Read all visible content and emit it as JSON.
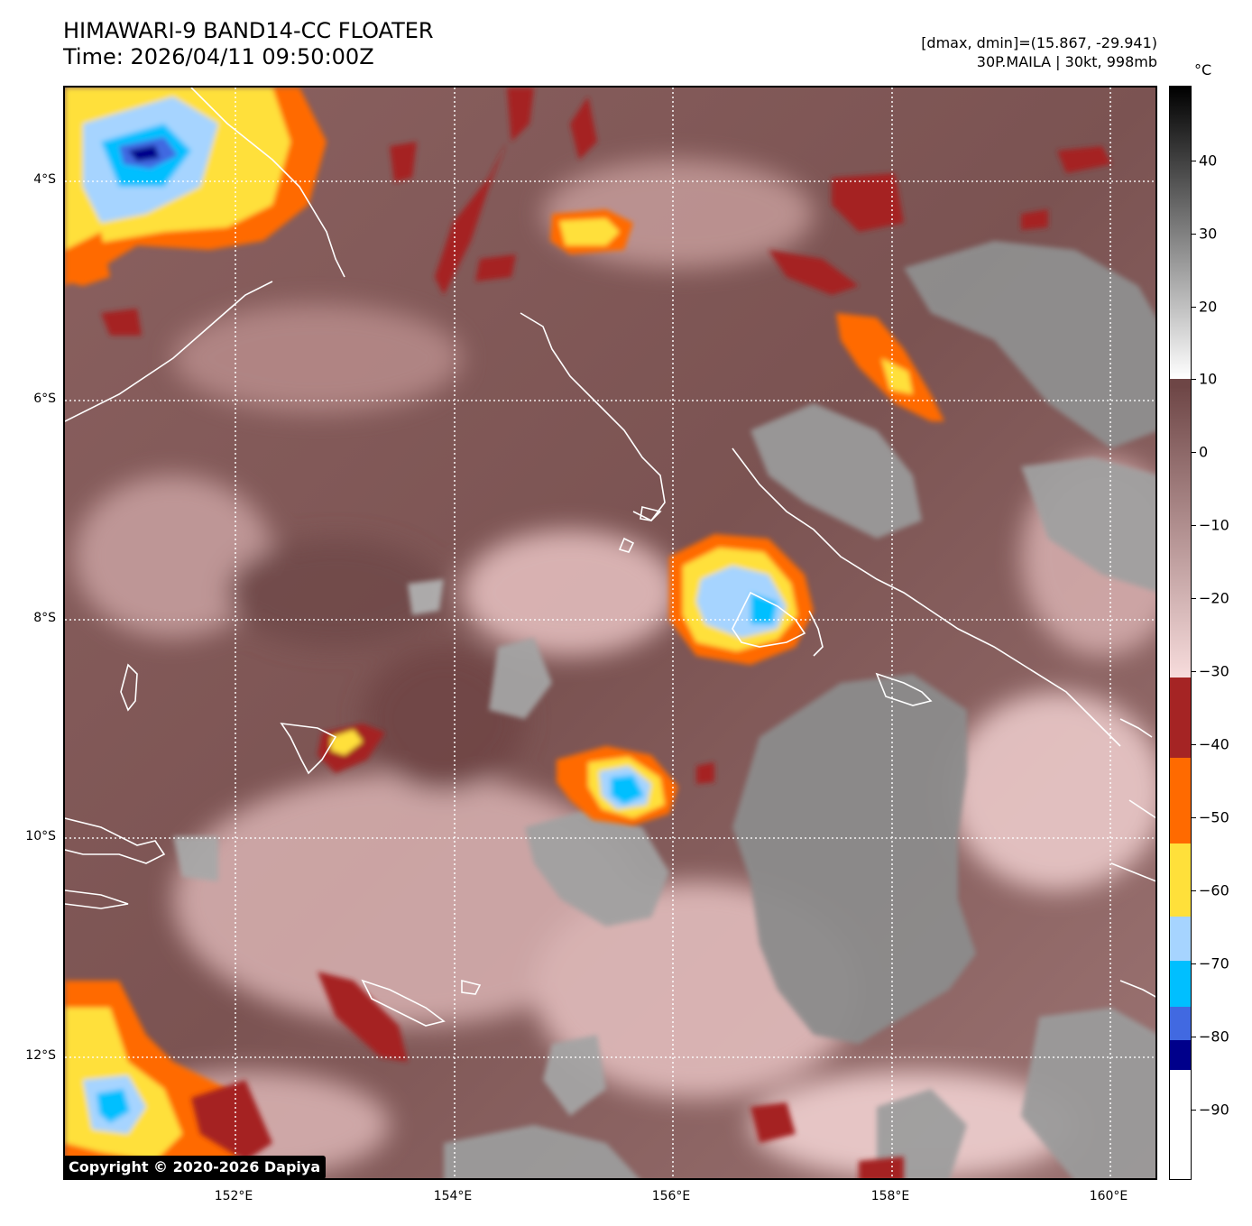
{
  "header": {
    "title_line1": "HIMAWARI-9 BAND14-CC FLOATER",
    "title_line2": "Time: 2026/04/11 09:50:00Z",
    "range_text": "[dmax, dmin]=(15.867, -29.941)",
    "storm_text": "30P.MAILA | 30kt, 998mb"
  },
  "map": {
    "lat_labels": [
      "4°S",
      "6°S",
      "8°S",
      "10°S",
      "12°S"
    ],
    "lon_labels": [
      "152°E",
      "154°E",
      "156°E",
      "158°E",
      "160°E"
    ],
    "lat_range": [
      -13.1,
      -3.1
    ],
    "lon_range": [
      150.5,
      160.45
    ]
  },
  "colorbar": {
    "unit": "°C",
    "ticks": [
      "40",
      "30",
      "20",
      "10",
      "0",
      "−10",
      "−20",
      "−30",
      "−40",
      "−50",
      "−60",
      "−70",
      "−80",
      "−90"
    ],
    "tick_values": [
      40,
      30,
      20,
      10,
      0,
      -10,
      -20,
      -30,
      -40,
      -50,
      -60,
      -70,
      -80,
      -90
    ],
    "range": [
      -100,
      50
    ],
    "colors": {
      "warm_gray": "#8a8a8a",
      "pink_low": "#f2d4d4",
      "pink_high": "#6e4646",
      "red": "#a52424",
      "orange": "#ff6a00",
      "yellow": "#ffe03a",
      "light_blue": "#a6d4ff",
      "cyan": "#00bfff",
      "royal_blue": "#4169e1",
      "navy": "#00008b",
      "white": "#ffffff"
    }
  },
  "footer": {
    "copyright": "Copyright © 2020-2026 Dapiya"
  }
}
